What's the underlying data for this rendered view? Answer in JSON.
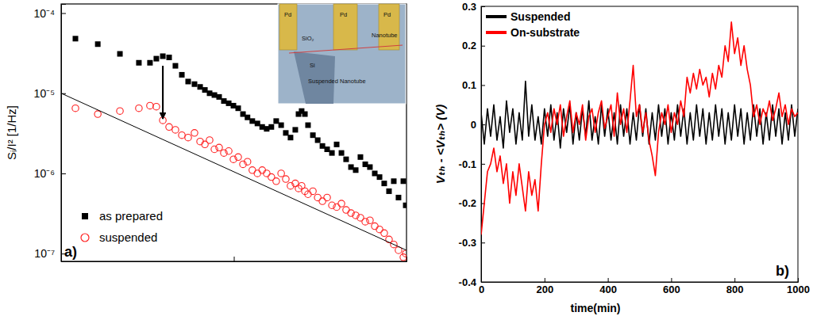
{
  "chart_data": [
    {
      "type": "scatter",
      "panel_label": "a)",
      "y_label": "Sᵢ/I² [1/Hz]",
      "log": true,
      "tick_labels": "y",
      "xlim": [
        1,
        100
      ],
      "xticks": [
        1,
        10,
        100
      ],
      "ylim": [
        8e-08,
        0.00013
      ],
      "yticks": [
        {
          "value": 1e-07,
          "label": "10⁻⁷"
        },
        {
          "value": 1e-06,
          "label": "10⁻⁶"
        },
        {
          "value": 1e-05,
          "label": "10⁻⁵"
        },
        {
          "value": 0.0001,
          "label": "10⁻⁴"
        }
      ],
      "legend": "lower left",
      "series": [
        {
          "name": "as prepared",
          "color": "#000000",
          "marker": "square",
          "x": [
            1.21,
            1.63,
            2.19,
            2.82,
            3.27,
            3.56,
            3.88,
            4.22,
            4.59,
            5.0,
            5.44,
            5.92,
            6.38,
            6.8,
            7.24,
            7.72,
            8.22,
            8.76,
            9.34,
            9.95,
            10.6,
            11.3,
            12.0,
            12.8,
            13.7,
            14.6,
            15.5,
            16.5,
            17.6,
            18.8,
            20.0,
            21.3,
            22.7,
            23.7,
            24.7,
            25.8,
            26.9,
            28.7,
            30.6,
            32.6,
            34.7,
            37.0,
            39.4,
            42.0,
            44.7,
            47.7,
            50.8,
            54.1,
            57.7,
            61.4,
            65.5,
            69.8,
            74.3,
            79.2,
            84.4,
            89.9,
            95.9,
            99
          ],
          "values": [
            4.8e-05,
            4.1e-05,
            3.1e-05,
            2.4e-05,
            2.4e-05,
            2.7e-05,
            2.9e-05,
            2.8e-05,
            2.2e-05,
            1.7e-05,
            1.4e-05,
            1.3e-05,
            1.2e-05,
            1.1e-05,
            1e-05,
            9.5e-06,
            9e-06,
            8e-06,
            7.5e-06,
            7e-06,
            6.5e-06,
            5.5e-06,
            5e-06,
            4.5e-06,
            4.2e-06,
            3.8e-06,
            3.6e-06,
            3.8e-06,
            4.5e-06,
            4e-06,
            3.2e-06,
            2.8e-06,
            3.5e-06,
            5.5e-06,
            6e-06,
            5.5e-06,
            4e-06,
            3e-06,
            2.6e-06,
            2.2e-06,
            2e-06,
            1.8e-06,
            2.3e-06,
            1.8e-06,
            1.5e-06,
            1.2e-06,
            1.1e-06,
            1.6e-06,
            1.3e-06,
            1.2e-06,
            1e-06,
            9e-07,
            7.5e-07,
            6e-07,
            8e-07,
            5e-07,
            8e-07,
            4e-07
          ]
        },
        {
          "name": "suspended",
          "color": "#ff2020",
          "marker": "circle",
          "x": [
            1.21,
            1.63,
            2.19,
            2.82,
            3.27,
            3.56,
            3.88,
            4.22,
            4.59,
            5.0,
            5.44,
            5.92,
            6.38,
            6.8,
            7.24,
            7.72,
            8.22,
            8.76,
            9.34,
            9.95,
            10.6,
            11.3,
            12.0,
            12.8,
            13.7,
            14.6,
            15.5,
            16.5,
            17.6,
            18.8,
            20.0,
            21.3,
            22.7,
            23.7,
            24.7,
            25.8,
            26.9,
            28.7,
            30.6,
            32.6,
            34.7,
            37.0,
            39.4,
            42.0,
            44.7,
            47.7,
            50.8,
            54.1,
            57.7,
            61.4,
            65.5,
            69.8,
            74.3,
            79.2,
            84.4,
            89.9,
            95.9,
            99
          ],
          "values": [
            6.5e-06,
            5.5e-06,
            6e-06,
            6.5e-06,
            7e-06,
            6.8e-06,
            4.6e-06,
            3.8e-06,
            3.5e-06,
            3e-06,
            2.8e-06,
            3.2e-06,
            2.5e-06,
            2.3e-06,
            2.6e-06,
            2e-06,
            2.1e-06,
            1.8e-06,
            1.9e-06,
            1.5e-06,
            1.6e-06,
            1.3e-06,
            1.4e-06,
            1.1e-06,
            1e-06,
            1.1e-06,
            1e-06,
            9e-07,
            8e-07,
            1e-06,
            8.5e-07,
            7e-07,
            7.5e-07,
            6.5e-07,
            7e-07,
            6e-07,
            5.5e-07,
            6e-07,
            5e-07,
            4.5e-07,
            5e-07,
            4e-07,
            3.8e-07,
            4.2e-07,
            3.5e-07,
            3.2e-07,
            3e-07,
            2.8e-07,
            2.5e-07,
            2.6e-07,
            2.2e-07,
            2e-07,
            1.8e-07,
            1.5e-07,
            1.3e-07,
            1.1e-07,
            9e-08,
            1e-07
          ]
        },
        {
          "type": "line",
          "color": "#000000",
          "line_style": "solid",
          "x": [
            1,
            100
          ],
          "values": [
            1e-05,
            1.1e-07
          ]
        }
      ],
      "arrow": {
        "x": 3.88,
        "from": 2.2e-05,
        "to": 4.8e-06
      },
      "inset": {
        "labels": [
          "Pd",
          "Pd",
          "Pd",
          "SiO₂",
          "Si",
          "Nanotube",
          "Suspended Nanotube"
        ]
      }
    },
    {
      "type": "line",
      "panel_label": "b)",
      "x_label": "time(min)",
      "y_label": "Vₜₕ - <Vₜₕ> (V)",
      "xlim": [
        0,
        1000
      ],
      "xticks": [
        0,
        200,
        400,
        600,
        800,
        1000
      ],
      "ylim": [
        -0.4,
        0.3
      ],
      "yticks": [
        -0.4,
        -0.3,
        -0.2,
        -0.1,
        0,
        0.1,
        0.2,
        0.3
      ],
      "legend": "upper left",
      "x": [
        0,
        10,
        20,
        30,
        40,
        50,
        60,
        70,
        80,
        90,
        100,
        110,
        120,
        130,
        140,
        150,
        160,
        170,
        180,
        190,
        200,
        210,
        220,
        230,
        240,
        250,
        260,
        270,
        280,
        290,
        300,
        310,
        320,
        330,
        340,
        350,
        360,
        370,
        380,
        390,
        400,
        410,
        420,
        430,
        440,
        450,
        460,
        470,
        480,
        490,
        500,
        510,
        520,
        530,
        540,
        550,
        560,
        570,
        580,
        590,
        600,
        610,
        620,
        630,
        640,
        650,
        660,
        670,
        680,
        690,
        700,
        710,
        720,
        730,
        740,
        750,
        760,
        770,
        780,
        790,
        800,
        810,
        820,
        830,
        840,
        850,
        860,
        870,
        880,
        890,
        900,
        910,
        920,
        930,
        940,
        950,
        960,
        970,
        980,
        990,
        1000
      ],
      "series": [
        {
          "name": "Suspended",
          "color": "#000000",
          "values": [
            0.03,
            -0.05,
            0.04,
            -0.03,
            0.05,
            -0.04,
            0.02,
            -0.06,
            0.06,
            -0.02,
            0.04,
            -0.05,
            0.03,
            -0.04,
            0.11,
            -0.03,
            0.05,
            -0.04,
            0.02,
            -0.05,
            0.04,
            -0.03,
            0.05,
            -0.04,
            0.03,
            -0.06,
            0.04,
            -0.02,
            0.05,
            -0.05,
            0.03,
            -0.04,
            0.04,
            -0.03,
            0.06,
            -0.04,
            0.02,
            -0.05,
            0.05,
            -0.03,
            0.04,
            -0.04,
            0.03,
            -0.05,
            0.05,
            -0.03,
            0.04,
            -0.05,
            0.03,
            -0.04,
            0.05,
            -0.03,
            0.04,
            -0.05,
            0.03,
            -0.04,
            0.05,
            -0.03,
            0.04,
            -0.05,
            0.03,
            -0.04,
            0.05,
            -0.03,
            0.04,
            -0.05,
            0.03,
            -0.04,
            0.05,
            -0.03,
            0.04,
            -0.05,
            0.03,
            -0.04,
            0.05,
            -0.03,
            0.04,
            -0.05,
            0.03,
            -0.04,
            0.05,
            -0.03,
            0.04,
            -0.05,
            0.03,
            -0.04,
            0.05,
            -0.03,
            0.04,
            -0.05,
            0.03,
            -0.04,
            0.05,
            -0.03,
            0.04,
            -0.05,
            0.03,
            -0.04,
            0.05,
            -0.03,
            0.04
          ]
        },
        {
          "name": "On-substrate",
          "color": "#ff0000",
          "values": [
            -0.28,
            -0.2,
            -0.12,
            -0.1,
            -0.06,
            -0.12,
            -0.08,
            -0.15,
            -0.1,
            -0.2,
            -0.12,
            -0.18,
            -0.1,
            -0.16,
            -0.22,
            -0.12,
            -0.18,
            -0.14,
            -0.22,
            -0.1,
            0.0,
            0.03,
            -0.02,
            0.04,
            0.0,
            0.05,
            -0.03,
            0.02,
            0.06,
            -0.02,
            0.03,
            0.0,
            0.05,
            -0.04,
            0.02,
            0.04,
            -0.02,
            0.03,
            0.06,
            -0.01,
            0.02,
            0.05,
            -0.03,
            0.08,
            0.0,
            0.04,
            -0.02,
            0.06,
            0.15,
            0.02,
            0.05,
            -0.02,
            0.03,
            -0.04,
            -0.08,
            -0.13,
            -0.02,
            0.03,
            0.0,
            0.05,
            -0.02,
            0.03,
            0.0,
            0.06,
            0.02,
            0.12,
            0.08,
            0.13,
            0.09,
            0.14,
            0.1,
            0.12,
            0.07,
            0.13,
            0.09,
            0.15,
            0.12,
            0.2,
            0.16,
            0.26,
            0.18,
            0.22,
            0.15,
            0.2,
            0.14,
            0.1,
            0.02,
            0.05,
            0.0,
            0.04,
            0.02,
            0.06,
            0.01,
            0.04,
            0.08,
            0.02,
            0.05,
            0.0,
            0.04,
            0.02,
            0.03
          ]
        }
      ]
    }
  ]
}
